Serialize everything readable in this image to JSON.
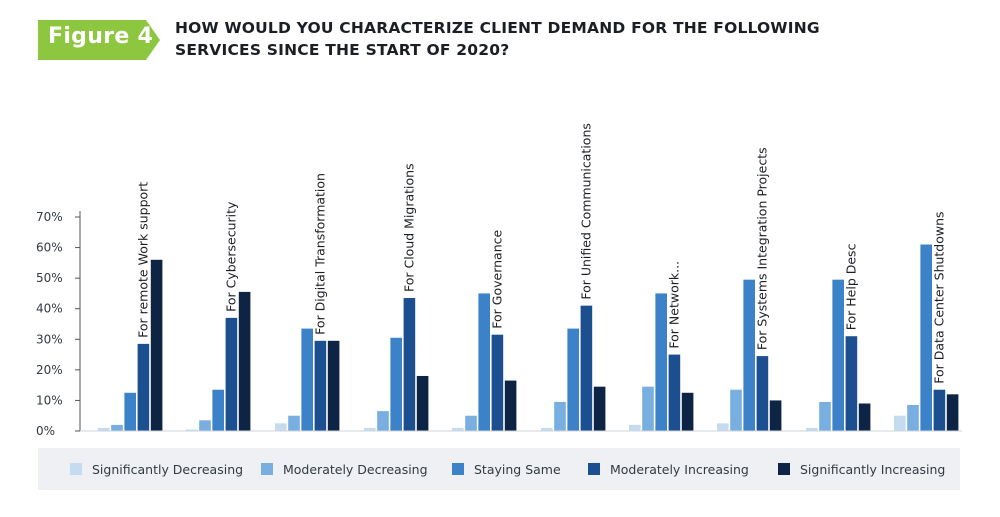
{
  "figure_label": "Figure 4",
  "title_line1": "HOW WOULD YOU CHARACTERIZE CLIENT DEMAND FOR THE FOLLOWING",
  "title_line2": "SERVICES SINCE THE START OF 2020?",
  "colors": {
    "badge": "#8dc63f",
    "series": [
      "#c5dbf0",
      "#78aee0",
      "#3b82c8",
      "#1b4f90",
      "#0e2444"
    ],
    "axis": "#555555",
    "legend_bg": "#eef0f3"
  },
  "chart_data": {
    "type": "bar",
    "title": "HOW WOULD YOU CHARACTERIZE CLIENT DEMAND FOR THE FOLLOWING SERVICES SINCE THE START OF 2020?",
    "xlabel": "",
    "ylabel": "",
    "ylim": [
      0,
      70
    ],
    "yticks": [
      0,
      10,
      20,
      30,
      40,
      50,
      60,
      70
    ],
    "ytick_labels": [
      "0%",
      "10%",
      "20%",
      "30%",
      "40%",
      "50%",
      "60%",
      "70%"
    ],
    "grid": false,
    "legend_position": "bottom",
    "categories": [
      "For remote Work support",
      "For Cybersecurity",
      "For Digital Transformation",
      "For Cloud Migrations",
      "For Governance",
      "For Unified Communications",
      "For Network...",
      "For Systems Integration Projects",
      "For Help Desc",
      "For Data Center Shutdowns"
    ],
    "series": [
      {
        "name": "Significantly Decreasing",
        "values": [
          1,
          0.5,
          2.5,
          1,
          1,
          1,
          2,
          2.5,
          1,
          5
        ]
      },
      {
        "name": "Moderately Decreasing",
        "values": [
          2,
          3.5,
          5,
          6.5,
          5,
          9.5,
          14.5,
          13.5,
          9.5,
          8.5
        ]
      },
      {
        "name": "Staying Same",
        "values": [
          12.5,
          13.5,
          33.5,
          30.5,
          45,
          33.5,
          45,
          49.5,
          49.5,
          61
        ]
      },
      {
        "name": "Moderately Increasing",
        "values": [
          28.5,
          37,
          29.5,
          43.5,
          31.5,
          41,
          25,
          24.5,
          31,
          13.5
        ]
      },
      {
        "name": "Significantly Increasing",
        "values": [
          56,
          45.5,
          29.5,
          18,
          16.5,
          14.5,
          12.5,
          10,
          9,
          12
        ]
      }
    ]
  }
}
